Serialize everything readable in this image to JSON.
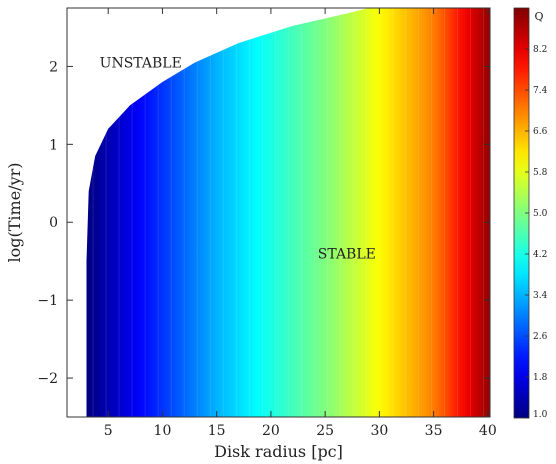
{
  "chart_data": {
    "type": "heatmap",
    "title": "",
    "xlabel": "Disk radius [pc]",
    "ylabel": "log(Time/yr)",
    "xlim": [
      1.2,
      40.2
    ],
    "ylim": [
      -2.5,
      2.75
    ],
    "x_ticks": [
      5,
      10,
      15,
      20,
      25,
      30,
      35,
      40
    ],
    "x_tick_labels": [
      "5",
      "10",
      "15",
      "20",
      "25",
      "30",
      "35",
      "40"
    ],
    "y_ticks": [
      -2,
      -1,
      0,
      1,
      2
    ],
    "y_tick_labels": [
      "−2",
      "−1",
      "0",
      "1",
      "2"
    ],
    "colorbar": {
      "title": "Q",
      "range": [
        1.0,
        9.0
      ],
      "colormap": "jet",
      "ticks": [
        1.0,
        1.8,
        2.6,
        3.4,
        4.2,
        5.0,
        5.8,
        6.6,
        7.4,
        8.2
      ],
      "tick_labels": [
        "1.0",
        "1.8",
        "2.6",
        "3.4",
        "4.2",
        "5.0",
        "5.8",
        "6.6",
        "7.4",
        "8.2"
      ]
    },
    "stable_region": {
      "x_start_pc": 3.0,
      "boundary": [
        {
          "x": 3.0,
          "y": -2.5
        },
        {
          "x": 3.0,
          "y": -0.5
        },
        {
          "x": 3.2,
          "y": 0.4
        },
        {
          "x": 3.8,
          "y": 0.85
        },
        {
          "x": 5.0,
          "y": 1.2
        },
        {
          "x": 7.0,
          "y": 1.5
        },
        {
          "x": 10.0,
          "y": 1.8
        },
        {
          "x": 13.0,
          "y": 2.05
        },
        {
          "x": 17.0,
          "y": 2.3
        },
        {
          "x": 22.0,
          "y": 2.52
        },
        {
          "x": 27.0,
          "y": 2.68
        },
        {
          "x": 29.0,
          "y": 2.75
        }
      ],
      "q_vs_radius": [
        {
          "x": 3.0,
          "q": 1.0
        },
        {
          "x": 15.0,
          "q": 3.4
        },
        {
          "x": 25.0,
          "q": 5.0
        },
        {
          "x": 35.0,
          "q": 7.0
        },
        {
          "x": 40.0,
          "q": 8.8
        }
      ]
    },
    "annotations": [
      {
        "text": "UNSTABLE",
        "x": 8.0,
        "y": 2.05
      },
      {
        "text": "STABLE",
        "x": 27.0,
        "y": -0.4
      }
    ],
    "grid": false,
    "legend": "none"
  }
}
